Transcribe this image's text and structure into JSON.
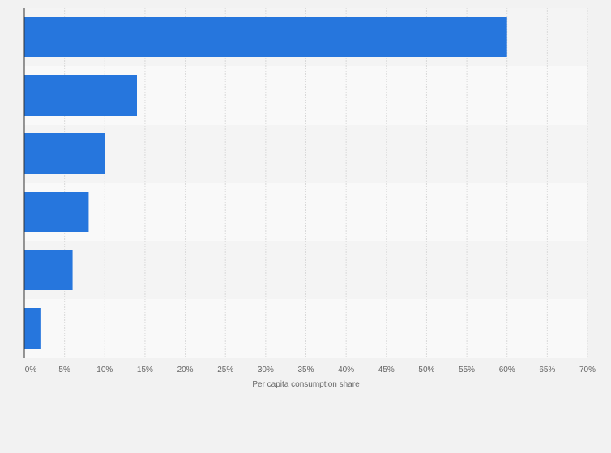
{
  "chart_data": {
    "type": "bar",
    "orientation": "horizontal",
    "categories": [
      "",
      "",
      "",
      "",
      "",
      ""
    ],
    "values": [
      60,
      14,
      10,
      8,
      6,
      2
    ],
    "unit": "%",
    "xlabel": "Per capita consumption share",
    "ylabel": "",
    "xlim": [
      0,
      70
    ],
    "xticks": [
      "0%",
      "5%",
      "10%",
      "15%",
      "20%",
      "25%",
      "30%",
      "35%",
      "40%",
      "45%",
      "50%",
      "55%",
      "60%",
      "65%",
      "70%"
    ],
    "grid": true,
    "legend": "none",
    "colors": {
      "bar": "#2676dd",
      "band_odd": "#f4f4f4",
      "band_even": "#f9f9f9",
      "grid": "#d9d9d9",
      "axis": "#333333",
      "text": "#666666",
      "background": "#f2f2f2"
    }
  }
}
